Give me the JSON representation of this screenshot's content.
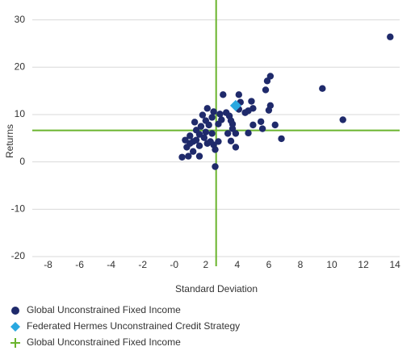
{
  "chart_data": {
    "type": "scatter",
    "xlabel": "Standard Deviation",
    "ylabel": "Returns",
    "xlim": [
      -9,
      14.3
    ],
    "ylim": [
      -20,
      33
    ],
    "xticks": [
      -8,
      -6,
      -4,
      -2,
      {
        "value": 0,
        "label": "-0"
      },
      2,
      4,
      6,
      8,
      10,
      12,
      14
    ],
    "yticks": [
      -20,
      -10,
      0,
      10,
      20,
      30
    ],
    "grid": true,
    "series": [
      {
        "name": "Global Unconstrained Fixed Income",
        "color": "#1f2a6b",
        "marker": "circle",
        "x": [
          13.7,
          9.4,
          10.7,
          6.8,
          6.4,
          6.1,
          5.9,
          5.8,
          6.1,
          6.0,
          5.6,
          5.5,
          4.9,
          5.0,
          4.7,
          4.5,
          4.1,
          4.2,
          4.1,
          5.0,
          4.7,
          3.9,
          3.9,
          3.7,
          3.6,
          3.5,
          3.4,
          3.6,
          3.1,
          3.0,
          2.9,
          2.8,
          2.6,
          2.6,
          2.8,
          2.5,
          2.4,
          2.5,
          2.1,
          2.4,
          2.2,
          2.0,
          2.1,
          1.9,
          2.0,
          1.8,
          1.7,
          1.6,
          1.6,
          1.4,
          1.3,
          1.4,
          1.2,
          1.0,
          1.2,
          1.6,
          0.8,
          1.0,
          0.7,
          0.9,
          0.5,
          2.3,
          3.3,
          3.7
        ],
        "y": [
          26.4,
          15.5,
          8.9,
          4.9,
          7.8,
          18.1,
          17.1,
          15.2,
          11.9,
          10.9,
          7.0,
          8.5,
          12.8,
          11.3,
          10.8,
          10.4,
          14.2,
          12.6,
          11.1,
          7.8,
          6.1,
          3.1,
          6.0,
          7.0,
          8.7,
          9.7,
          6.0,
          4.4,
          14.2,
          8.9,
          10.1,
          8.0,
          -1.0,
          2.6,
          4.3,
          3.6,
          6.0,
          10.6,
          11.3,
          9.4,
          7.8,
          6.3,
          3.9,
          5.1,
          8.7,
          9.9,
          7.5,
          3.4,
          5.8,
          6.7,
          8.4,
          4.6,
          4.3,
          3.9,
          2.2,
          1.2,
          3.1,
          5.5,
          4.6,
          1.2,
          1.0,
          4.3,
          10.4,
          8.0
        ]
      },
      {
        "name": "Federated Hermes Unconstrained Credit Strategy",
        "color": "#29a8e0",
        "marker": "diamond",
        "x": [
          3.9
        ],
        "y": [
          11.9
        ]
      },
      {
        "name": "Global Unconstrained Fixed Income",
        "color": "#6ab42d",
        "marker": "cross",
        "x": [
          2.66
        ],
        "y": [
          6.65
        ]
      }
    ]
  }
}
